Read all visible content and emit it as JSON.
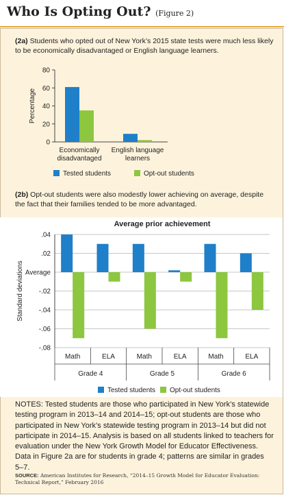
{
  "figure": {
    "title": "Who Is Opting Out?",
    "figure_ref": "(Figure 2)",
    "notes": "NOTES: Tested students are those who participated in New York’s statewide testing program in 2013–14 and 2014–15; opt-out students are those who participated in New York’s statewide testing program in 2013–14 but did not participate in 2014–15. Analysis is based on all students linked to teachers for evaluation under the New York Growth Model for Educator Effectiveness. Data in Figure 2a are for students in grade 4; patterns are similar in grades 5–7.",
    "source_label": "SOURCE:",
    "source_text": "American Institutes for Research, “2014–15 Growth Model for Educator Evaluation: Technical Report,” February 2016"
  },
  "chart_data": [
    {
      "type": "bar",
      "panel_label": "(2a)",
      "caption": "Students who opted out of New York’s 2015 state tests were much less likely to be economically disadvantaged or English language learners.",
      "title": "",
      "xlabel": "",
      "ylabel": "Percentage",
      "ylim": [
        0,
        80
      ],
      "yticks": [
        0,
        20,
        40,
        60,
        80
      ],
      "ytick_labels": [
        "0",
        "20",
        "40",
        "60",
        "80"
      ],
      "categories": [
        "Economically disadvantaged",
        "English language learners"
      ],
      "category_lines": [
        [
          "Economically",
          "disadvantaged"
        ],
        [
          "English language",
          "learners"
        ]
      ],
      "series": [
        {
          "name": "Tested students",
          "values": [
            61,
            9
          ],
          "color": "#1f7fc9"
        },
        {
          "name": "Opt-out students",
          "values": [
            35,
            2
          ],
          "color": "#8dc63f"
        }
      ],
      "legend": "bottom",
      "grid": false
    },
    {
      "type": "bar",
      "panel_label": "(2b)",
      "caption": "Opt-out students were also modestly lower achieving on average, despite the fact that their families tended to be more advantaged.",
      "title": "Average prior achievement",
      "xlabel": "",
      "ylabel": "Standard deviations",
      "ylim": [
        -0.08,
        0.04
      ],
      "yticks": [
        0.04,
        0.02,
        0,
        -0.02,
        -0.04,
        -0.06,
        -0.08
      ],
      "ytick_labels": [
        ".04",
        ".02",
        "Average",
        "-.02",
        "-.04",
        "-.06",
        "-.08"
      ],
      "categories": [
        "Math",
        "ELA",
        "Math",
        "ELA",
        "Math",
        "ELA"
      ],
      "groups": [
        "Grade 4",
        "Grade 5",
        "Grade 6"
      ],
      "series": [
        {
          "name": "Tested students",
          "values": [
            0.04,
            0.03,
            0.03,
            0.002,
            0.03,
            0.02
          ],
          "color": "#1f7fc9"
        },
        {
          "name": "Opt-out students",
          "values": [
            -0.07,
            -0.01,
            -0.06,
            -0.01,
            -0.07,
            -0.04
          ],
          "color": "#8dc63f"
        }
      ],
      "legend": "bottom",
      "grid": true
    }
  ]
}
